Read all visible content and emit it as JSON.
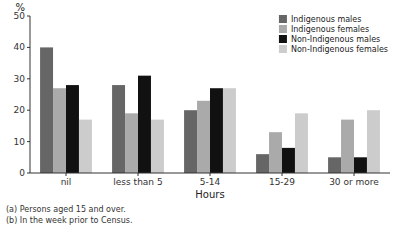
{
  "chart_data": {
    "type": "bar",
    "xlabel": "Hours",
    "ylabel": "%",
    "categories": [
      "nil",
      "less than 5",
      "5-14",
      "15-29",
      "30 or more"
    ],
    "series": [
      {
        "name": "Indigenous males",
        "color": "#666666",
        "values": [
          40,
          28,
          20,
          6,
          5
        ]
      },
      {
        "name": "Indigenous females",
        "color": "#aaaaaa",
        "values": [
          27,
          19,
          23,
          13,
          17
        ]
      },
      {
        "name": "Non-Indigenous males",
        "color": "#111111",
        "values": [
          28,
          31,
          27,
          8,
          5
        ]
      },
      {
        "name": "Non-Indigenous females",
        "color": "#cccccc",
        "values": [
          17,
          17,
          27,
          19,
          20
        ]
      }
    ],
    "ylim": [
      0,
      50
    ],
    "yticks": [
      0,
      10,
      20,
      30,
      40,
      50
    ],
    "grid": false,
    "legend": "upper right",
    "annotations": [
      "(a) Persons aged 15 and over.",
      "(b) In the week prior to Census."
    ]
  }
}
